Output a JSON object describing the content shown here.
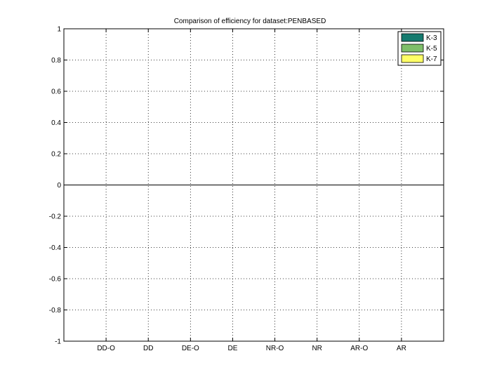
{
  "chart_data": {
    "type": "bar",
    "title": "Comparison of efficiency for dataset:PENBASED",
    "xlabel": "",
    "ylabel": "",
    "categories": [
      "DD-O",
      "DD",
      "DE-O",
      "DE",
      "NR-O",
      "NR",
      "AR-O",
      "AR"
    ],
    "series": [
      {
        "name": "K-3",
        "color": "#157a6e",
        "values": [
          0,
          0,
          0,
          0,
          0,
          0,
          0,
          0
        ]
      },
      {
        "name": "K-5",
        "color": "#7fbf6a",
        "values": [
          0,
          0,
          0,
          0,
          0,
          0,
          0,
          0
        ]
      },
      {
        "name": "K-7",
        "color": "#ffff66",
        "values": [
          0,
          0,
          0,
          0,
          0,
          0,
          0,
          0
        ]
      }
    ],
    "ylim": [
      -1,
      1
    ],
    "yticks": [
      1,
      0.8,
      0.6,
      0.4,
      0.2,
      0,
      -0.2,
      -0.4,
      -0.6,
      -0.8,
      -1
    ],
    "ytick_labels": [
      "1",
      "0.8",
      "0.6",
      "0.4",
      "0.2",
      "0",
      "-0.2",
      "-0.4",
      "-0.6",
      "-0.8",
      "-1"
    ],
    "grid": true,
    "legend_position": "top-right"
  }
}
